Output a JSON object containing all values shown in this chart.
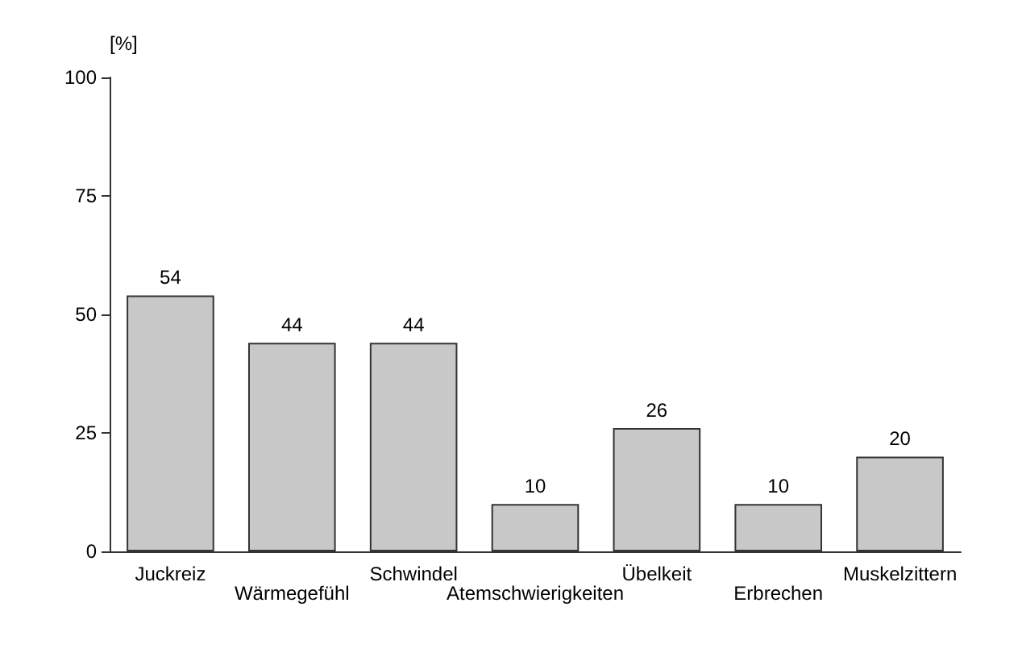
{
  "chart_data": {
    "type": "bar",
    "ylabel": "[%]",
    "categories": [
      "Juckreiz",
      "Wärmegefühl",
      "Schwindel",
      "Atemschwierigkeiten",
      "Übelkeit",
      "Erbrechen",
      "Muskelzittern"
    ],
    "values": [
      54,
      44,
      44,
      10,
      26,
      10,
      20
    ],
    "color": "#c8c8c8",
    "ylim": [
      0,
      100
    ],
    "yticks": [
      0,
      25,
      50,
      75,
      100
    ],
    "grid": false,
    "data_labels": true
  }
}
